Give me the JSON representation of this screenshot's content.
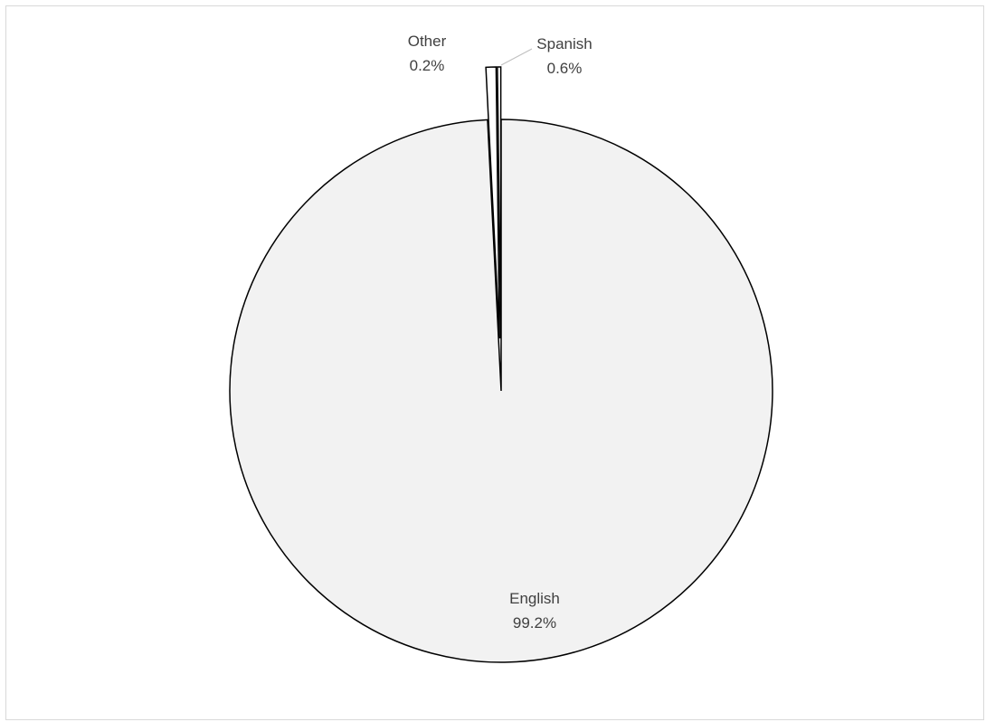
{
  "chart_data": {
    "type": "pie",
    "title": "",
    "slices": [
      {
        "label": "English",
        "value": 99.2,
        "value_label": "99.2%",
        "color": "#f2f2f2",
        "exploded": false
      },
      {
        "label": "Spanish",
        "value": 0.6,
        "value_label": "0.6%",
        "color": "#ffffff",
        "exploded": true
      },
      {
        "label": "Other",
        "value": 0.2,
        "value_label": "0.2%",
        "color": "#ffffff",
        "exploded": true
      }
    ],
    "start_angle": "12 o'clock",
    "direction": "clockwise",
    "legend": "none",
    "data_labels": "category name and percentage"
  }
}
